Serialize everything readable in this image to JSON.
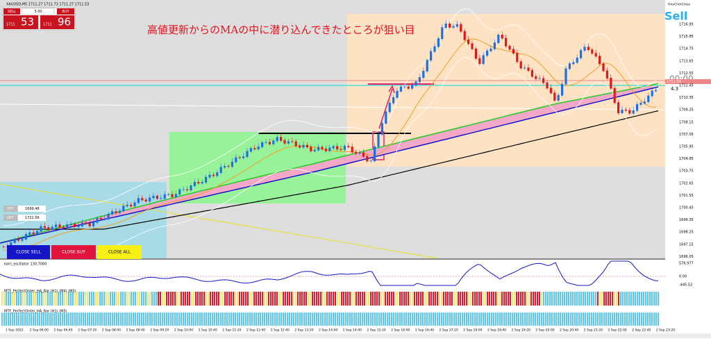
{
  "header": {
    "symbol_info": "XAUUSD,M5  1711.27 1711.73 1711.27 1711.53"
  },
  "trade_panel": {
    "sell": "SELL",
    "lots": "3.00",
    "buy": "BUY",
    "sell_big": "1711",
    "sell_pips": "53",
    "buy_big": "1711",
    "buy_pips": "96"
  },
  "annotation": "高値更新からのMAの中に潜り込んできたところが狙い目",
  "signal": "Sell",
  "one_click_close": "OneClickClose",
  "timer": "00:00",
  "spread": "4.3",
  "current_price": "1711.53",
  "price_axis": [
    "1716.95",
    "1715.85",
    "1714.75",
    "1713.65",
    "1712.55",
    "1711.45",
    "1710.35",
    "1709.25",
    "1708.15",
    "1707.05",
    "1705.95",
    "1704.85",
    "1703.75",
    "1702.65",
    "1701.55",
    "1700.45",
    "1699.35",
    "1698.25",
    "1697.15",
    "1696.05"
  ],
  "buttons": [
    "CLOSE SELL",
    "CLOSE BUY",
    "CLOSE ALL"
  ],
  "off_boxes": [
    {
      "toggle": "OFF",
      "value": "1699.48"
    },
    {
      "toggle": "OFF",
      "value": "1721.56"
    }
  ],
  "oscillator": {
    "label": "kairi_oscillator 130.7000",
    "axis": [
      "576.977",
      "0.00",
      "-445.52"
    ]
  },
  "mtf_bars": [
    "MTF_PerfectOrder_HA_Bar (H1) (M4) (M5)",
    "MTF_PerfectOrder_HA_Bar (H1) (M5)"
  ],
  "time_axis": [
    "1 Sep 2022",
    "2 Sep 06:00",
    "2 Sep 06:40",
    "2 Sep 07:20",
    "2 Sep 08:00",
    "2 Sep 08:40",
    "2 Sep 09:20",
    "2 Sep 10:00",
    "2 Sep 10:40",
    "2 Sep 11:20",
    "2 Sep 12:00",
    "2 Sep 12:40",
    "2 Sep 13:20",
    "2 Sep 14:00",
    "2 Sep 14:40",
    "2 Sep 15:20",
    "2 Sep 16:00",
    "2 Sep 16:40",
    "2 Sep 17:20",
    "2 Sep 18:00",
    "2 Sep 18:40",
    "2 Sep 19:20",
    "2 Sep 20:00",
    "2 Sep 20:40",
    "2 Sep 21:20",
    "2 Sep 22:00",
    "2 Sep 22:40",
    "2 Sep 23:20"
  ]
}
